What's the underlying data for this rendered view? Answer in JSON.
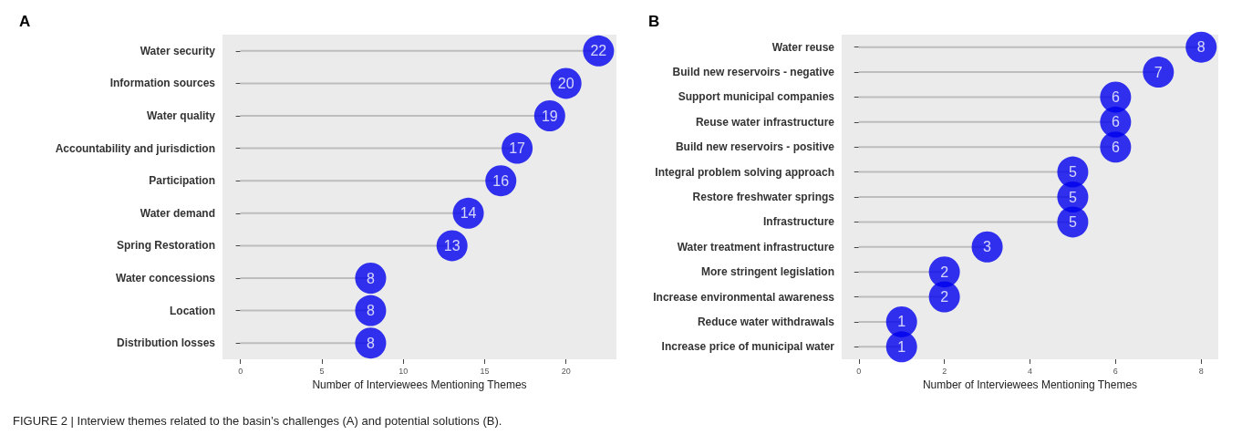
{
  "chart_data": [
    {
      "type": "lollipop",
      "title": "A",
      "orientation": "horizontal",
      "xlabel": "Number of Interviewees Mentioning Themes",
      "categories": [
        "Water security",
        "Information sources",
        "Water quality",
        "Accountability and jurisdiction",
        "Participation",
        "Water demand",
        "Spring Restoration",
        "Water concessions",
        "Location",
        "Distribution losses"
      ],
      "values": [
        22,
        20,
        19,
        17,
        16,
        14,
        13,
        8,
        8,
        8
      ],
      "color": "#0000ee",
      "xlim": [
        -1.1,
        23.1
      ],
      "xticks": [
        0,
        5,
        10,
        15,
        20
      ],
      "marker": "circle",
      "data_labels": true,
      "annotations": [
        "FIGURE 2 | Interview themes related to the basin’s challenges (A) and potential solutions (B)."
      ]
    },
    {
      "type": "lollipop",
      "title": "B",
      "orientation": "horizontal",
      "xlabel": "Number of Interviewees Mentioning Themes",
      "categories": [
        "Water reuse",
        "Build new reservoirs - negative",
        "Support municipal companies",
        "Reuse water infrastructure",
        "Build new reservoirs - positive",
        "Integral problem solving approach",
        "Restore freshwater springs",
        "Infrastructure",
        "Water treatment infrastructure",
        "More stringent legislation",
        "Increase environmental awareness",
        "Reduce water withdrawals",
        "Increase price of municipal water"
      ],
      "values": [
        8,
        7,
        6,
        6,
        6,
        5,
        5,
        5,
        3,
        2,
        2,
        1,
        1
      ],
      "color": "#0000ee",
      "xlim": [
        -0.4,
        8.4
      ],
      "xticks": [
        0,
        2,
        4,
        6,
        8
      ],
      "marker": "circle",
      "data_labels": true
    }
  ]
}
